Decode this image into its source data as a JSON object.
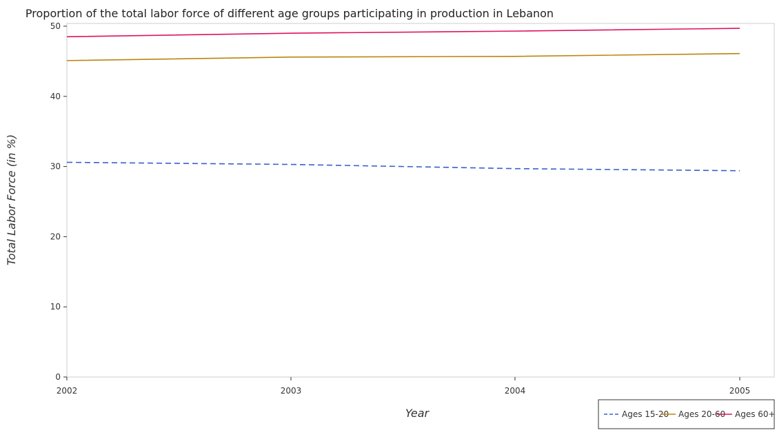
{
  "chart_data": {
    "type": "line",
    "title": "Proportion of the total labor force of different age groups participating in production in Lebanon",
    "xlabel": "Year",
    "ylabel": "Total Labor Force (in %)",
    "categories": [
      "2002",
      "2003",
      "2004",
      "2005"
    ],
    "ylim": [
      0,
      50
    ],
    "yticks": [
      0,
      10,
      20,
      30,
      40,
      50
    ],
    "grid": false,
    "legend_position": "bottom-right",
    "series": [
      {
        "name": "Ages 15-20",
        "color": "#3a5fcd",
        "dash": "8,5",
        "values": [
          30.6,
          30.3,
          29.7,
          29.4
        ]
      },
      {
        "name": "Ages 20-60",
        "color": "#b8860b",
        "dash": "",
        "values": [
          45.1,
          45.6,
          45.7,
          46.1
        ]
      },
      {
        "name": "Ages 60+",
        "color": "#e0115f",
        "dash": "",
        "values": [
          48.5,
          49.0,
          49.3,
          49.7
        ]
      }
    ]
  }
}
